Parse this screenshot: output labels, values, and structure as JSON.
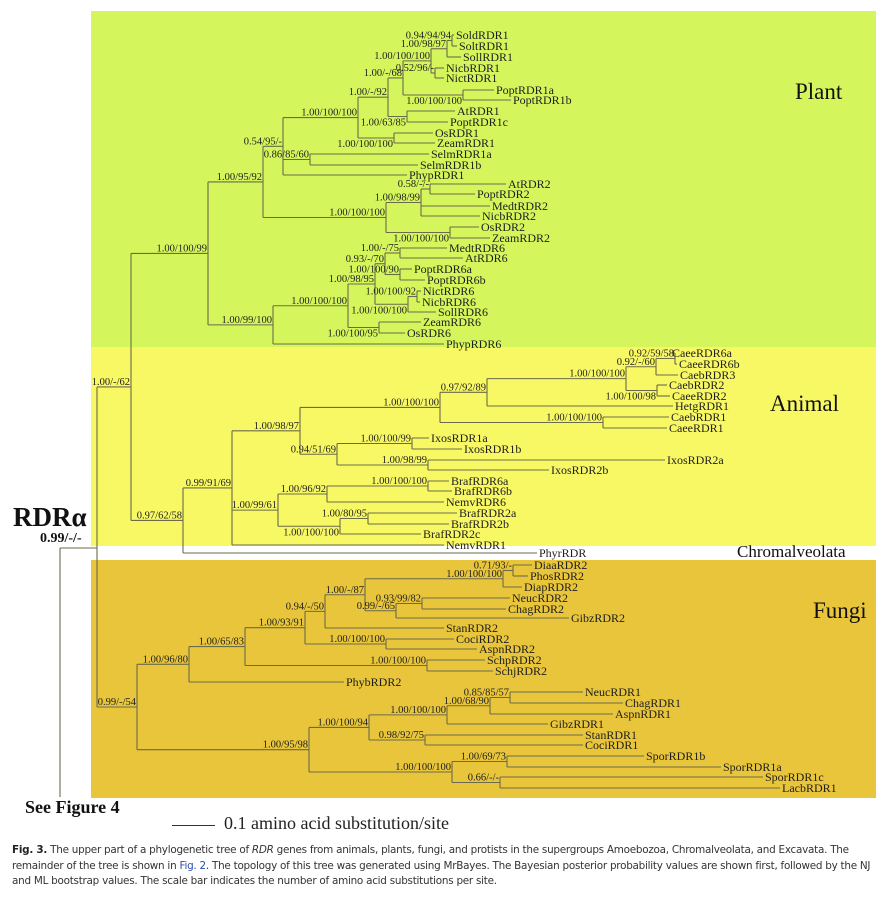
{
  "regions": {
    "plant": "Plant",
    "animal": "Animal",
    "chromalveolata": "Chromalveolata",
    "fungi": "Fungi"
  },
  "colors": {
    "plant": "#d4f65c",
    "animal": "#f8f864",
    "fungi": "#e8c53b",
    "branch": "#6b6b4a"
  },
  "root": {
    "label": "RDRα",
    "support": "0.99/-/-",
    "outgroup": "See Figure 4"
  },
  "scale_bar": {
    "label": "0.1 amino acid substitution/site"
  },
  "caption": {
    "fig_label": "Fig. 3.",
    "part1": " The upper part of a phylogenetic tree of ",
    "rdr": "RDR",
    "part2": " genes from animals, plants, fungi, and protists in the supergroups Amoebozoa, Chromalveolata, and Excavata. The remainder of the tree is shown in ",
    "fig2_link": "Fig. 2",
    "part3": ". The topology of this tree was generated using MrBayes. The Bayesian posterior probability values are shown first, followed by the NJ and ML bootstrap values. The scale bar indicates the number of amino acid substitutions per site."
  },
  "tree": {
    "children": [
      {
        "support": "1.00/-/62",
        "children": [
          {
            "support": "1.00/100/99",
            "children": [
              {
                "support": "1.00/95/92",
                "children": [
                  {
                    "support": "0.54/95/-",
                    "children": [
                      {
                        "support": "1.00/100/100",
                        "children": [
                          {
                            "support": "1.00/-/92",
                            "children": [
                              {
                                "support": "1.00/-/68",
                                "children": [
                                  {
                                    "support": "1.00/100/100",
                                    "children": [
                                      {
                                        "support": "1.00/98/97",
                                        "children": [
                                          {
                                            "support": "0.94/94/94",
                                            "children": [
                                              "SoldRDR1",
                                              "SoltRDR1"
                                            ]
                                          },
                                          "SollRDR1"
                                        ]
                                      },
                                      {
                                        "support": "0.52/96/-",
                                        "children": [
                                          "NicbRDR1",
                                          "NictRDR1"
                                        ]
                                      }
                                    ]
                                  },
                                  {
                                    "support": "1.00/100/100",
                                    "children": [
                                      "PoptRDR1a",
                                      "PoptRDR1b"
                                    ]
                                  }
                                ]
                              },
                              {
                                "support": "1.00/63/85",
                                "children": [
                                  "AtRDR1",
                                  "PoptRDR1c"
                                ]
                              }
                            ]
                          },
                          {
                            "support": "1.00/100/100",
                            "children": [
                              "OsRDR1",
                              "ZeamRDR1"
                            ]
                          }
                        ]
                      },
                      {
                        "support": "0.86/85/60",
                        "children": [
                          "SelmRDR1a",
                          "SelmRDR1b"
                        ]
                      },
                      "PhypRDR1"
                    ]
                  },
                  {
                    "support": "1.00/100/100",
                    "children": [
                      {
                        "support": "1.00/98/99",
                        "children": [
                          {
                            "support": "0.58/-/-",
                            "children": [
                              "AtRDR2",
                              "PoptRDR2"
                            ]
                          },
                          "MedtRDR2",
                          "NicbRDR2"
                        ]
                      },
                      {
                        "support": "1.00/100/100",
                        "children": [
                          "OsRDR2",
                          "ZeamRDR2"
                        ]
                      }
                    ]
                  }
                ]
              },
              {
                "support": "1.00/99/100",
                "children": [
                  {
                    "support": "1.00/100/100",
                    "children": [
                      {
                        "support": "1.00/98/95",
                        "children": [
                          {
                            "support": "0.93/-/70",
                            "children": [
                              {
                                "support": "1.00/-/75",
                                "children": [
                                  "MedtRDR6",
                                  "AtRDR6"
                                ]
                              },
                              {
                                "support": "1.00/100/90",
                                "children": [
                                  "PoptRDR6a",
                                  "PoptRDR6b"
                                ]
                              }
                            ]
                          },
                          {
                            "support": "1.00/100/100",
                            "children": [
                              {
                                "support": "1.00/100/92",
                                "children": [
                                  "NictRDR6",
                                  "NicbRDR6"
                                ]
                              },
                              "SollRDR6"
                            ]
                          }
                        ]
                      },
                      {
                        "support": "1.00/100/95",
                        "children": [
                          "ZeamRDR6",
                          "OsRDR6"
                        ]
                      }
                    ]
                  },
                  "PhypRDR6"
                ]
              }
            ]
          },
          {
            "support": "0.97/62/58",
            "children": [
              {
                "support": "0.99/91/69",
                "children": [
                  {
                    "support": "1.00/98/97",
                    "children": [
                      {
                        "support": "1.00/100/100",
                        "children": [
                          {
                            "support": "0.97/92/89",
                            "children": [
                              {
                                "support": "1.00/100/100",
                                "children": [
                                  {
                                    "support": "0.92/-/60",
                                    "children": [
                                      {
                                        "support": "0.92/59/58",
                                        "children": [
                                          "CaeeRDR6a",
                                          "CaeeRDR6b"
                                        ]
                                      },
                                      "CaebRDR3"
                                    ]
                                  },
                                  {
                                    "support": "1.00/100/98",
                                    "children": [
                                      "CaebRDR2",
                                      "CaeeRDR2"
                                    ]
                                  }
                                ]
                              },
                              "HetgRDR1"
                            ]
                          },
                          {
                            "support": "1.00/100/100",
                            "children": [
                              "CaebRDR1",
                              "CaeeRDR1"
                            ]
                          }
                        ]
                      },
                      {
                        "support": "0.94/51/69",
                        "children": [
                          {
                            "support": "1.00/100/99",
                            "children": [
                              "IxosRDR1a",
                              "IxosRDR1b"
                            ]
                          },
                          {
                            "support": "1.00/98/99",
                            "children": [
                              "IxosRDR2a",
                              "IxosRDR2b"
                            ]
                          }
                        ]
                      }
                    ]
                  },
                  {
                    "support": "1.00/99/61",
                    "children": [
                      {
                        "support": "1.00/96/92",
                        "children": [
                          {
                            "support": "1.00/100/100",
                            "children": [
                              "BrafRDR6a",
                              "BrafRDR6b"
                            ]
                          },
                          "NemvRDR6"
                        ]
                      },
                      {
                        "support": "1.00/100/100",
                        "children": [
                          {
                            "support": "1.00/80/95",
                            "children": [
                              "BrafRDR2a",
                              "BrafRDR2b"
                            ]
                          },
                          "BrafRDR2c"
                        ]
                      }
                    ]
                  },
                  "NemvRDR1"
                ]
              },
              "PhyrRDR"
            ]
          }
        ]
      },
      {
        "support": "0.99/-/54",
        "children": [
          {
            "support": "1.00/96/80",
            "children": [
              {
                "support": "1.00/65/83",
                "children": [
                  {
                    "support": "1.00/93/91",
                    "children": [
                      {
                        "support": "0.94/-/50",
                        "children": [
                          {
                            "support": "1.00/-/87",
                            "children": [
                              {
                                "support": "1.00/100/100",
                                "children": [
                                  {
                                    "support": "0.71/93/-",
                                    "children": [
                                      "DiaaRDR2",
                                      "PhosRDR2"
                                    ]
                                  },
                                  "DiapRDR2"
                                ]
                              },
                              {
                                "support": "0.99/-/65",
                                "children": [
                                  {
                                    "support": "0.93/99/82",
                                    "children": [
                                      "NeucRDR2",
                                      "ChagRDR2"
                                    ]
                                  },
                                  "GibzRDR2"
                                ]
                              }
                            ]
                          },
                          "StanRDR2"
                        ]
                      },
                      {
                        "support": "1.00/100/100",
                        "children": [
                          "CociRDR2",
                          "AspnRDR2"
                        ]
                      }
                    ]
                  },
                  {
                    "support": "1.00/100/100",
                    "children": [
                      "SchpRDR2",
                      "SchjRDR2"
                    ]
                  }
                ]
              },
              "PhybRDR2"
            ]
          },
          {
            "support": "1.00/95/98",
            "children": [
              {
                "support": "1.00/100/94",
                "children": [
                  {
                    "support": "1.00/100/100",
                    "children": [
                      {
                        "support": "1.00/68/90",
                        "children": [
                          {
                            "support": "0.85/85/57",
                            "children": [
                              "NeucRDR1",
                              "ChagRDR1"
                            ]
                          },
                          "AspnRDR1"
                        ]
                      },
                      "GibzRDR1"
                    ]
                  },
                  {
                    "support": "0.98/92/75",
                    "children": [
                      "StanRDR1",
                      "CociRDR1"
                    ]
                  }
                ]
              },
              {
                "support": "1.00/100/100",
                "children": [
                  {
                    "support": "1.00/69/73",
                    "children": [
                      "SporRDR1b",
                      "SporRDR1a"
                    ]
                  },
                  {
                    "support": "0.66/-/-",
                    "children": [
                      "SporRDR1c",
                      "LacbRDR1"
                    ]
                  }
                ]
              }
            ]
          }
        ]
      }
    ]
  }
}
